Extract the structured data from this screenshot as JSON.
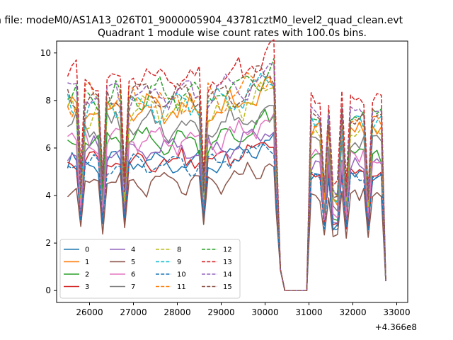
{
  "chart_data": {
    "type": "line",
    "suptitle": "n file: modeM0/AS1A13_026T01_9000005904_43781cztM0_level2_quad_clean.evt",
    "title": "Quadrant 1 module wise count rates with 100.0s bins.",
    "xlabel": "",
    "ylabel": "",
    "offset_text": "+4.366e8",
    "xlim": [
      25250,
      33250
    ],
    "ylim": [
      -0.5,
      10.5
    ],
    "x_ticks": [
      26000,
      27000,
      28000,
      29000,
      30000,
      31000,
      32000,
      33000
    ],
    "y_ticks": [
      0,
      2,
      4,
      6,
      8,
      10
    ],
    "grid": false,
    "legend_position": "lower-left",
    "legend_columns": 4,
    "series": [
      {
        "name": "0",
        "color": "#1f77b4",
        "dash": "solid",
        "base": 5.4,
        "amp": 0.3,
        "jitter": 0.25
      },
      {
        "name": "1",
        "color": "#ff7f0e",
        "dash": "solid",
        "base": 7.6,
        "amp": 0.4,
        "jitter": 0.35
      },
      {
        "name": "2",
        "color": "#2ca02c",
        "dash": "solid",
        "base": 6.3,
        "amp": 0.35,
        "jitter": 0.3
      },
      {
        "name": "3",
        "color": "#d62728",
        "dash": "solid",
        "base": 5.5,
        "amp": 0.3,
        "jitter": 0.3
      },
      {
        "name": "4",
        "color": "#9467bd",
        "dash": "solid",
        "base": 5.9,
        "amp": 0.35,
        "jitter": 0.3
      },
      {
        "name": "5",
        "color": "#8c564b",
        "dash": "solid",
        "base": 4.5,
        "amp": 0.3,
        "jitter": 0.3
      },
      {
        "name": "6",
        "color": "#e377c2",
        "dash": "solid",
        "base": 6.3,
        "amp": 0.35,
        "jitter": 0.3
      },
      {
        "name": "7",
        "color": "#7f7f7f",
        "dash": "solid",
        "base": 6.9,
        "amp": 0.4,
        "jitter": 0.35
      },
      {
        "name": "8",
        "color": "#bcbd22",
        "dash": "dashed",
        "base": 7.5,
        "amp": 0.4,
        "jitter": 0.35
      },
      {
        "name": "9",
        "color": "#17becf",
        "dash": "dashed",
        "base": 7.8,
        "amp": 0.45,
        "jitter": 0.35
      },
      {
        "name": "10",
        "color": "#1f77b4",
        "dash": "dashed",
        "base": 5.3,
        "amp": 0.3,
        "jitter": 0.25
      },
      {
        "name": "11",
        "color": "#ff7f0e",
        "dash": "dashed",
        "base": 8.0,
        "amp": 0.45,
        "jitter": 0.35
      },
      {
        "name": "12",
        "color": "#2ca02c",
        "dash": "dashed",
        "base": 8.3,
        "amp": 0.45,
        "jitter": 0.35
      },
      {
        "name": "13",
        "color": "#d62728",
        "dash": "dashed",
        "base": 9.0,
        "amp": 0.4,
        "jitter": 0.35
      },
      {
        "name": "14",
        "color": "#9467bd",
        "dash": "dashed",
        "base": 8.3,
        "amp": 0.45,
        "jitter": 0.35
      },
      {
        "name": "15",
        "color": "#8c564b",
        "dash": "dashed",
        "base": 8.1,
        "amp": 0.45,
        "jitter": 0.35
      }
    ]
  }
}
